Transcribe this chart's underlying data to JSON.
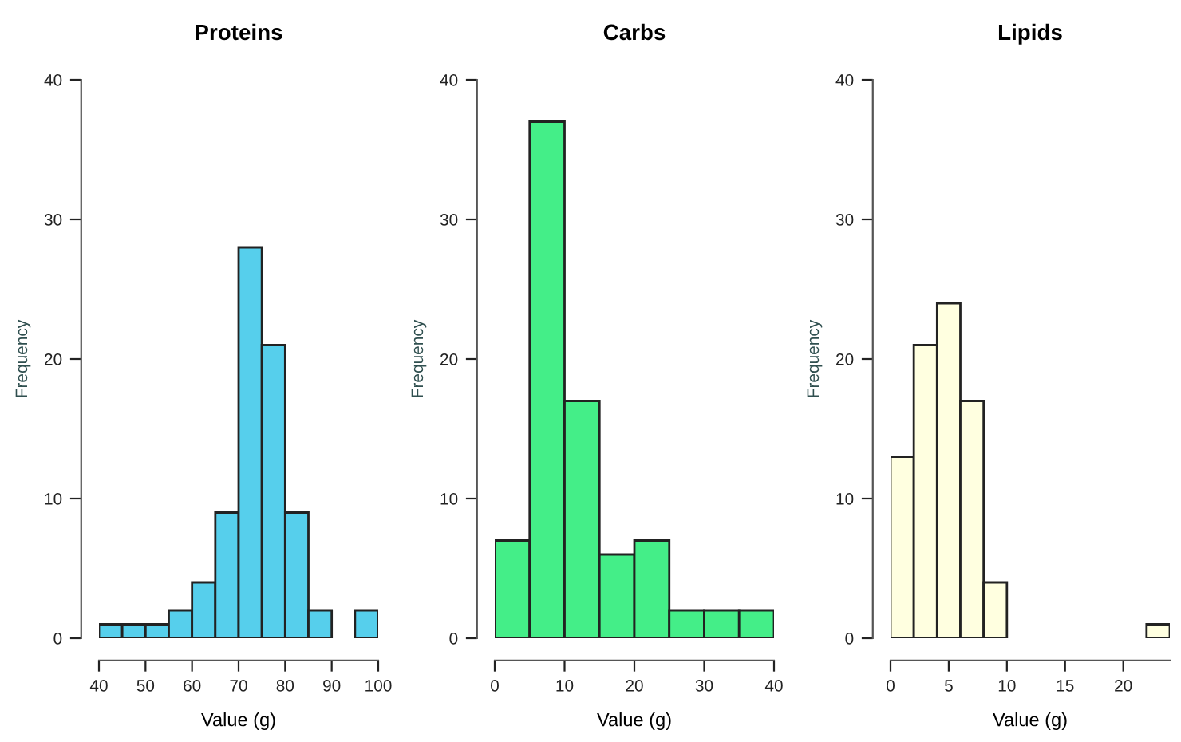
{
  "chart_data": [
    {
      "type": "histogram",
      "title": "Proteins",
      "xlabel": "Value (g)",
      "ylabel": "Frequency",
      "bins": [
        40,
        45,
        50,
        55,
        60,
        65,
        70,
        75,
        80,
        85,
        90,
        95,
        100
      ],
      "values": [
        1,
        1,
        1,
        2,
        4,
        9,
        28,
        21,
        9,
        2,
        0,
        2
      ],
      "color": "#56cfec",
      "xlim": [
        40,
        100
      ],
      "xticks": [
        40,
        50,
        60,
        70,
        80,
        90,
        100
      ],
      "ylim": [
        0,
        40
      ],
      "yticks": [
        0,
        10,
        20,
        30,
        40
      ],
      "grid": false,
      "legend": false
    },
    {
      "type": "histogram",
      "title": "Carbs",
      "xlabel": "Value (g)",
      "ylabel": "Frequency",
      "bins": [
        0,
        5,
        10,
        15,
        20,
        25,
        30,
        35,
        40
      ],
      "values": [
        7,
        37,
        17,
        6,
        7,
        2,
        2,
        2
      ],
      "color": "#44ee88",
      "xlim": [
        0,
        40
      ],
      "xticks": [
        0,
        10,
        20,
        30,
        40
      ],
      "ylim": [
        0,
        40
      ],
      "yticks": [
        0,
        10,
        20,
        30,
        40
      ],
      "grid": false,
      "legend": false
    },
    {
      "type": "histogram",
      "title": "Lipids",
      "xlabel": "Value (g)",
      "ylabel": "Frequency",
      "bins": [
        0,
        2,
        4,
        6,
        8,
        10,
        12,
        14,
        16,
        18,
        20,
        22,
        24
      ],
      "values": [
        13,
        21,
        24,
        17,
        4,
        0,
        0,
        0,
        0,
        0,
        0,
        1
      ],
      "color": "#ffffe0",
      "xlim": [
        0,
        24
      ],
      "xticks": [
        0,
        5,
        10,
        15,
        20
      ],
      "ylim": [
        0,
        40
      ],
      "yticks": [
        0,
        10,
        20,
        30,
        40
      ],
      "grid": false,
      "legend": false
    }
  ]
}
